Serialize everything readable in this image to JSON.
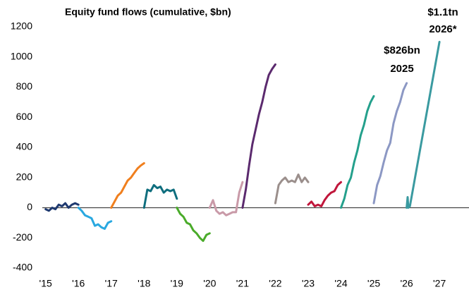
{
  "chart_data": {
    "type": "line",
    "title": "Equity fund flows (cumulative, $bn)",
    "annotations": [
      "$826bn",
      "2025",
      "$1.1tn",
      "2026*"
    ],
    "xlim": [
      2014.9,
      2027.9
    ],
    "ylim": [
      -400,
      1200
    ],
    "xticks": [
      {
        "value": 2015,
        "label": "'15"
      },
      {
        "value": 2016,
        "label": "'16"
      },
      {
        "value": 2017,
        "label": "'17"
      },
      {
        "value": 2018,
        "label": "'18"
      },
      {
        "value": 2019,
        "label": "'19"
      },
      {
        "value": 2020,
        "label": "'20"
      },
      {
        "value": 2021,
        "label": "'21"
      },
      {
        "value": 2022,
        "label": "'22"
      },
      {
        "value": 2023,
        "label": "'23"
      },
      {
        "value": 2024,
        "label": "'24"
      },
      {
        "value": 2025,
        "label": "'25"
      },
      {
        "value": 2026,
        "label": "'26"
      },
      {
        "value": 2027,
        "label": "'27"
      }
    ],
    "yticks": [
      -400,
      -200,
      0,
      200,
      400,
      600,
      800,
      1000,
      1200
    ],
    "grid": false,
    "series": [
      {
        "color": "#1f3a70",
        "x": [
          2015.0,
          2015.1,
          2015.2,
          2015.3,
          2015.4,
          2015.5,
          2015.6,
          2015.7,
          2015.8,
          2015.9,
          2016.0
        ],
        "values": [
          -10,
          -20,
          0,
          -10,
          20,
          10,
          30,
          0,
          20,
          30,
          20
        ]
      },
      {
        "color": "#29a8e0",
        "x": [
          2016.0,
          2016.1,
          2016.2,
          2016.3,
          2016.4,
          2016.5,
          2016.6,
          2016.7,
          2016.8,
          2016.9,
          2017.0
        ],
        "values": [
          0,
          -20,
          -50,
          -60,
          -70,
          -120,
          -110,
          -130,
          -140,
          -100,
          -90
        ]
      },
      {
        "color": "#f07f1e",
        "x": [
          2017.0,
          2017.1,
          2017.2,
          2017.3,
          2017.4,
          2017.5,
          2017.6,
          2017.7,
          2017.8,
          2017.9,
          2018.0
        ],
        "values": [
          0,
          40,
          80,
          100,
          140,
          180,
          200,
          230,
          260,
          280,
          295
        ]
      },
      {
        "color": "#0f6e7e",
        "x": [
          2018.0,
          2018.1,
          2018.2,
          2018.3,
          2018.4,
          2018.5,
          2018.6,
          2018.7,
          2018.8,
          2018.9,
          2019.0
        ],
        "values": [
          0,
          120,
          110,
          150,
          130,
          140,
          100,
          120,
          110,
          120,
          60
        ]
      },
      {
        "color": "#4aab2a",
        "x": [
          2019.0,
          2019.1,
          2019.2,
          2019.3,
          2019.4,
          2019.5,
          2019.6,
          2019.7,
          2019.8,
          2019.9,
          2020.0
        ],
        "values": [
          0,
          -40,
          -60,
          -100,
          -110,
          -150,
          -170,
          -200,
          -220,
          -180,
          -170
        ]
      },
      {
        "color": "#c99aa8",
        "x": [
          2020.0,
          2020.1,
          2020.2,
          2020.3,
          2020.4,
          2020.5,
          2020.6,
          2020.7,
          2020.8,
          2020.9,
          2021.0
        ],
        "values": [
          0,
          50,
          -20,
          -40,
          -30,
          -50,
          -40,
          -30,
          -30,
          100,
          170
        ]
      },
      {
        "color": "#5b2a6e",
        "x": [
          2021.0,
          2021.1,
          2021.2,
          2021.3,
          2021.4,
          2021.5,
          2021.6,
          2021.7,
          2021.8,
          2021.9,
          2022.0
        ],
        "values": [
          0,
          120,
          280,
          420,
          520,
          620,
          700,
          800,
          880,
          920,
          950
        ]
      },
      {
        "color": "#9b8f8c",
        "x": [
          2022.0,
          2022.1,
          2022.2,
          2022.3,
          2022.4,
          2022.5,
          2022.6,
          2022.7,
          2022.8,
          2022.9,
          2023.0
        ],
        "values": [
          30,
          150,
          180,
          200,
          170,
          180,
          170,
          220,
          170,
          200,
          170
        ]
      },
      {
        "color": "#c0163b",
        "x": [
          2023.0,
          2023.1,
          2023.2,
          2023.3,
          2023.4,
          2023.5,
          2023.6,
          2023.7,
          2023.8,
          2023.9,
          2024.0
        ],
        "values": [
          20,
          40,
          10,
          20,
          10,
          50,
          80,
          100,
          110,
          150,
          170
        ]
      },
      {
        "color": "#24a08c",
        "x": [
          2024.0,
          2024.1,
          2024.2,
          2024.3,
          2024.4,
          2024.5,
          2024.6,
          2024.7,
          2024.8,
          2024.9,
          2025.0
        ],
        "values": [
          0,
          60,
          150,
          200,
          300,
          380,
          480,
          550,
          640,
          700,
          740
        ]
      },
      {
        "color": "#8c98c4",
        "x": [
          2025.0,
          2025.1,
          2025.2,
          2025.3,
          2025.4,
          2025.5,
          2025.6,
          2025.7,
          2025.8,
          2025.9,
          2026.0
        ],
        "values": [
          30,
          150,
          210,
          300,
          380,
          430,
          560,
          640,
          700,
          780,
          826
        ]
      },
      {
        "color": "#3a9aa0",
        "x": [
          2026.0,
          2026.03,
          2026.05,
          2026.1,
          2027.0
        ],
        "values": [
          0,
          70,
          0,
          10,
          1100
        ]
      }
    ]
  }
}
